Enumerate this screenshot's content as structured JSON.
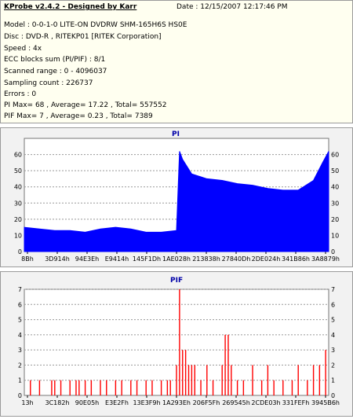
{
  "header": {
    "title": "KProbe v2.4.2 - Designed by Karr",
    "date": "Date : 12/15/2007 12:17:46 PM"
  },
  "info_lines": [
    "Model : 0-0-1-0 LITE-ON DVDRW SHM-165H6S HS0E",
    "Disc : DVD-R , RITEKP01 [RITEK Corporation]",
    "Speed : 4x",
    "ECC blocks sum (PI/PIF) : 8/1",
    "Scanned range : 0 - 4096037",
    "Sampling count : 226737",
    "Errors : 0",
    "PI Max= 68 , Average= 17.22 , Total= 557552",
    "PIF Max= 7 , Average= 0.23 , Total= 7389"
  ],
  "chart_data": [
    {
      "type": "area",
      "title": "PI",
      "color": "#0000ff",
      "ylim": [
        0,
        70
      ],
      "yticks": [
        0,
        10,
        20,
        30,
        40,
        50,
        60
      ],
      "xticks": [
        "8Bh",
        "3D914h",
        "94E3Eh",
        "E9414h",
        "145F1Dh",
        "1AE028h",
        "213838h",
        "27840Dh",
        "2DE024h",
        "341B86h",
        "3A8879h"
      ],
      "series": [
        {
          "x": [
            0,
            0.05,
            0.1,
            0.15,
            0.2,
            0.25,
            0.3,
            0.35,
            0.4,
            0.45,
            0.5,
            0.51,
            0.52,
            0.55,
            0.6,
            0.65,
            0.7,
            0.75,
            0.8,
            0.85,
            0.9,
            0.95,
            0.98,
            1.0
          ],
          "values": [
            15,
            14,
            13,
            13,
            12,
            14,
            15,
            14,
            12,
            12,
            13,
            62,
            57,
            48,
            45,
            44,
            42,
            41,
            39,
            38,
            38,
            44,
            55,
            62
          ]
        }
      ]
    },
    {
      "type": "bar",
      "title": "PIF",
      "color": "#ff0000",
      "ylim": [
        0,
        7
      ],
      "yticks": [
        0,
        1,
        2,
        3,
        4,
        5,
        6,
        7
      ],
      "xticks": [
        "13h",
        "3C182h",
        "90E05h",
        "E3E2Fh",
        "13E3F9h",
        "1A293Eh",
        "206F5Fh",
        "269545h",
        "2CDE03h",
        "331FEFh",
        "3945B6h"
      ],
      "series": [
        {
          "x": [
            0.02,
            0.05,
            0.09,
            0.1,
            0.12,
            0.15,
            0.17,
            0.18,
            0.2,
            0.22,
            0.25,
            0.27,
            0.3,
            0.32,
            0.35,
            0.37,
            0.4,
            0.42,
            0.45,
            0.47,
            0.48,
            0.5,
            0.51,
            0.52,
            0.53,
            0.54,
            0.55,
            0.56,
            0.58,
            0.6,
            0.62,
            0.65,
            0.66,
            0.67,
            0.68,
            0.7,
            0.72,
            0.75,
            0.78,
            0.8,
            0.82,
            0.85,
            0.88,
            0.9,
            0.93,
            0.95,
            0.97,
            0.99
          ],
          "values": [
            1,
            1,
            1,
            1,
            1,
            1,
            1,
            1,
            1,
            1,
            1,
            1,
            1,
            1,
            1,
            1,
            1,
            1,
            1,
            1,
            1,
            2,
            7,
            3,
            3,
            2,
            2,
            2,
            1,
            2,
            1,
            2,
            4,
            4,
            2,
            1,
            1,
            2,
            1,
            2,
            1,
            1,
            1,
            2,
            1,
            2,
            2,
            3
          ]
        }
      ]
    }
  ]
}
